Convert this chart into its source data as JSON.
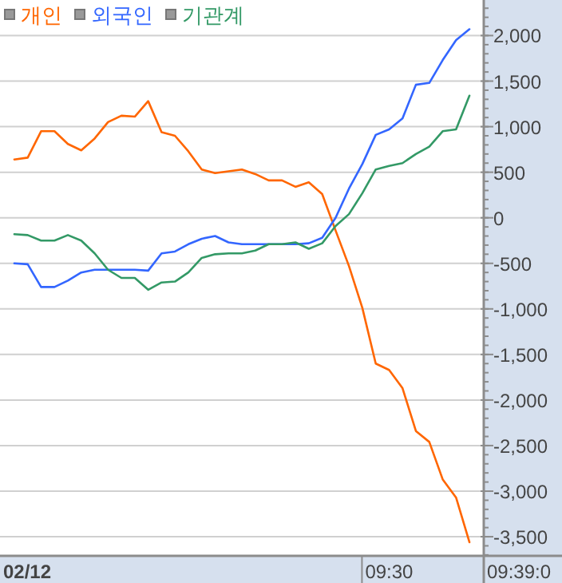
{
  "chart_data": {
    "type": "line",
    "categories": [
      null,
      null,
      null,
      null,
      null,
      null,
      null,
      null,
      null,
      null,
      null,
      null,
      null,
      null,
      null,
      null,
      null,
      null,
      null,
      null,
      null,
      null,
      null,
      null,
      null,
      null,
      null,
      null,
      "09:30",
      null,
      null,
      null,
      null,
      null,
      null
    ],
    "series": [
      {
        "name": "개인",
        "color": "#ff6600",
        "values": [
          640,
          660,
          950,
          950,
          810,
          740,
          870,
          1050,
          1120,
          1110,
          1280,
          940,
          900,
          730,
          530,
          490,
          510,
          530,
          480,
          410,
          410,
          340,
          390,
          260,
          -140,
          -530,
          -990,
          -1600,
          -1670,
          -1870,
          -2340,
          -2460,
          -2870,
          -3070,
          -3560
        ]
      },
      {
        "name": "외국인",
        "color": "#3366ff",
        "values": [
          -500,
          -510,
          -760,
          -760,
          -690,
          -600,
          -570,
          -570,
          -570,
          -570,
          -580,
          -390,
          -370,
          -290,
          -230,
          -200,
          -270,
          -290,
          -290,
          -290,
          -290,
          -290,
          -280,
          -220,
          0,
          320,
          590,
          910,
          970,
          1090,
          1460,
          1480,
          1730,
          1950,
          2070
        ]
      },
      {
        "name": "기관계",
        "color": "#339966",
        "values": [
          -180,
          -190,
          -250,
          -250,
          -190,
          -250,
          -390,
          -570,
          -660,
          -660,
          -790,
          -710,
          -700,
          -600,
          -440,
          -400,
          -390,
          -390,
          -360,
          -290,
          -290,
          -270,
          -340,
          -280,
          -90,
          40,
          270,
          530,
          570,
          600,
          700,
          780,
          950,
          970,
          1340
        ]
      }
    ],
    "annotations": [
      "02/12",
      "09:39:0"
    ],
    "ylim": [
      -3710,
      2390
    ],
    "yticks": [
      {
        "value": -3500,
        "label": "-3,500"
      },
      {
        "value": -3000,
        "label": "-3,000"
      },
      {
        "value": -2500,
        "label": "-2,500"
      },
      {
        "value": -2000,
        "label": "-2,000"
      },
      {
        "value": -1500,
        "label": "-1,500"
      },
      {
        "value": -1000,
        "label": "-1,000"
      },
      -500,
      0,
      500,
      {
        "value": 1000,
        "label": "1,000"
      },
      {
        "value": 1500,
        "label": "1,500"
      },
      {
        "value": 2000,
        "label": "2,000"
      }
    ],
    "grid": "y",
    "legend": "top left"
  }
}
